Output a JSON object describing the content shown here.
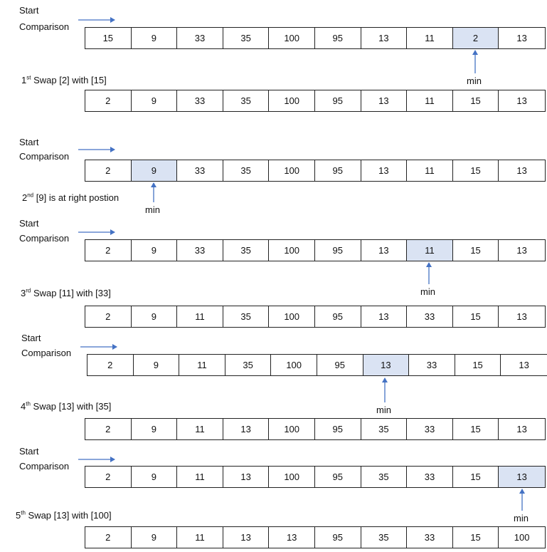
{
  "start_label_1": "Start",
  "start_label_2": "Comparison",
  "min_label": "min",
  "rows": [
    [
      "15",
      "9",
      "33",
      "35",
      "100",
      "95",
      "13",
      "11",
      "2",
      "13"
    ],
    [
      "2",
      "9",
      "33",
      "35",
      "100",
      "95",
      "13",
      "11",
      "15",
      "13"
    ],
    [
      "2",
      "9",
      "33",
      "35",
      "100",
      "95",
      "13",
      "11",
      "15",
      "13"
    ],
    [
      "2",
      "9",
      "33",
      "35",
      "100",
      "95",
      "13",
      "11",
      "15",
      "13"
    ],
    [
      "2",
      "9",
      "11",
      "35",
      "100",
      "95",
      "13",
      "33",
      "15",
      "13"
    ],
    [
      "2",
      "9",
      "11",
      "35",
      "100",
      "95",
      "13",
      "33",
      "15",
      "13"
    ],
    [
      "2",
      "9",
      "11",
      "13",
      "100",
      "95",
      "35",
      "33",
      "15",
      "13"
    ],
    [
      "2",
      "9",
      "11",
      "13",
      "100",
      "95",
      "35",
      "33",
      "15",
      "13"
    ],
    [
      "2",
      "9",
      "11",
      "13",
      "13",
      "95",
      "35",
      "33",
      "15",
      "100"
    ]
  ],
  "highlight": [
    8,
    null,
    1,
    7,
    null,
    6,
    null,
    9,
    null
  ],
  "steps": [
    {
      "num": "1",
      "sup": "st",
      "text": " Swap [2] with [15]"
    },
    {
      "num": "2",
      "sup": "nd",
      "text": " [9] is at right postion"
    },
    {
      "num": "3",
      "sup": "rd",
      "text": " Swap [11] with [33]"
    },
    {
      "num": "4",
      "sup": "th",
      "text": " Swap [13] with [35]"
    },
    {
      "num": "5",
      "sup": "th",
      "text": " Swap [13] with [100]"
    }
  ],
  "colors": {
    "highlight": "#dae3f3",
    "arrow": "#4472c4",
    "border": "#222222"
  }
}
